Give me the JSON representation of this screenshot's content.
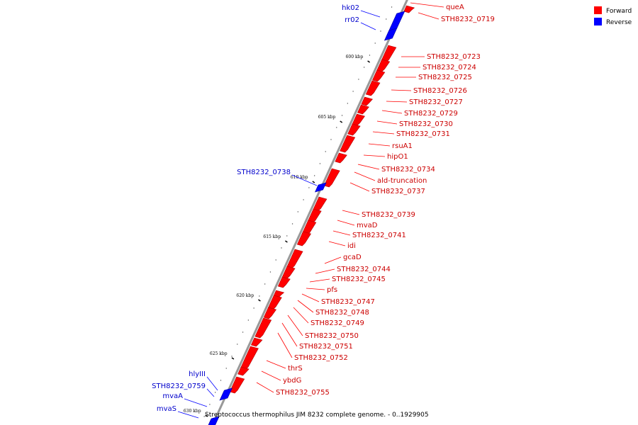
{
  "legend": [
    {
      "label": "Forward",
      "color": "#ff0000"
    },
    {
      "label": "Reverse",
      "color": "#0000ff"
    }
  ],
  "caption": "Streptococcus thermophilus JIM 8232 complete genome. - 0..1929905",
  "colors": {
    "forward": "#ff0000",
    "reverse": "#0000ff",
    "forward_label": "#cc0000",
    "reverse_label": "#0000cc",
    "axis": "#999999"
  },
  "ticks": [
    "600 kbp",
    "605 kbp",
    "610 kbp",
    "615 kbp",
    "620 kbp",
    "625 kbp",
    "630 kbp"
  ],
  "forward_genes": [
    "queA",
    "STH8232_0719",
    "STH8232_0723",
    "STH8232_0724",
    "STH8232_0725",
    "STH8232_0726",
    "STH8232_0727",
    "STH8232_0729",
    "STH8232_0730",
    "STH8232_0731",
    "rsuA1",
    "hipO1",
    "STH8232_0734",
    "ald-truncation",
    "STH8232_0737",
    "STH8232_0739",
    "mvaD",
    "STH8232_0741",
    "idi",
    "gcaD",
    "STH8232_0744",
    "STH8232_0745",
    "pfs",
    "STH8232_0747",
    "STH8232_0748",
    "STH8232_0749",
    "STH8232_0750",
    "STH8232_0751",
    "STH8232_0752",
    "thrS",
    "ybdG",
    "STH8232_0755"
  ],
  "reverse_genes": [
    "hk02",
    "rr02",
    "STH8232_0738",
    "hlyIII",
    "STH8232_0759",
    "mvaA",
    "mvaS"
  ]
}
